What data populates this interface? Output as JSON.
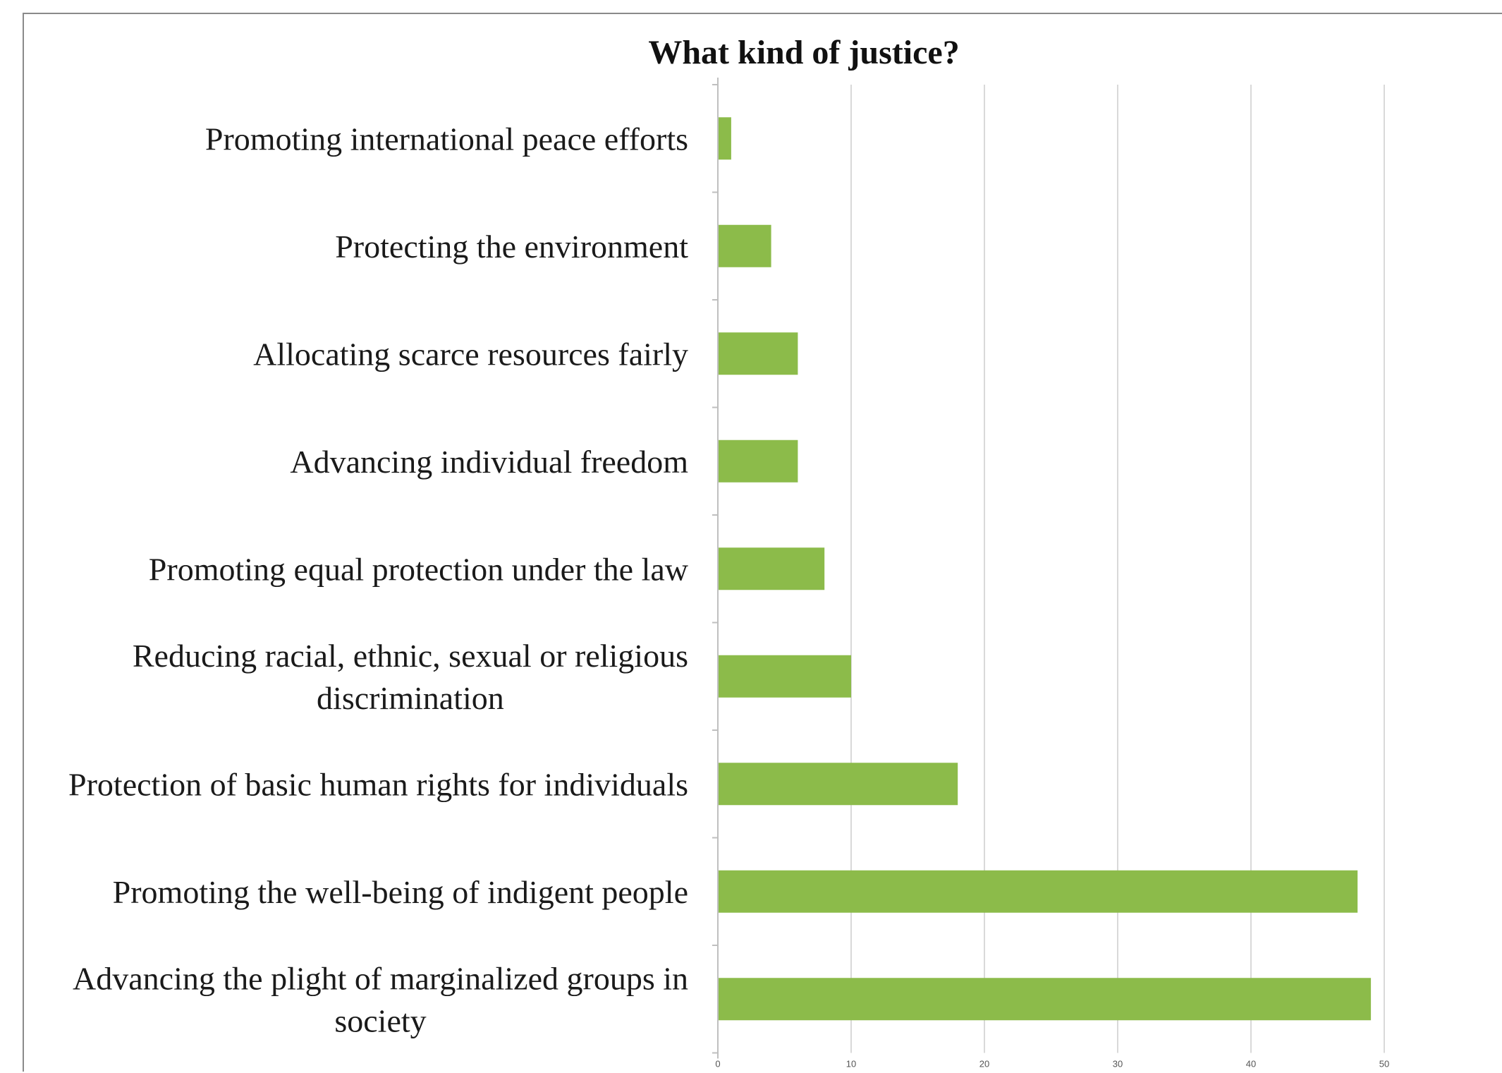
{
  "chart_data": {
    "type": "bar",
    "orientation": "horizontal",
    "title": "What kind of justice?",
    "xlabel": "",
    "ylabel": "",
    "categories": [
      "Promoting international peace efforts",
      "Protecting the environment",
      "Allocating scarce resources fairly",
      "Advancing individual freedom",
      "Promoting equal protection under the law",
      "Reducing racial, ethnic, sexual or religious discrimination",
      "Protection of basic human rights for individuals",
      "Promoting the well-being of indigent people",
      "Advancing the plight of marginalized groups in society"
    ],
    "label_lines": [
      [
        "Promoting international peace efforts"
      ],
      [
        "Protecting the environment"
      ],
      [
        "Allocating scarce resources fairly"
      ],
      [
        "Advancing individual freedom"
      ],
      [
        "Promoting equal protection under the law"
      ],
      [
        "Reducing racial, ethnic, sexual or religious",
        "discrimination"
      ],
      [
        "Protection of basic human rights for individuals"
      ],
      [
        "Promoting the well-being of indigent people"
      ],
      [
        "Advancing the plight of marginalized groups in",
        "society"
      ]
    ],
    "values": [
      1,
      4,
      6,
      6,
      8,
      10,
      18,
      48,
      49
    ],
    "xlim": [
      0,
      56
    ],
    "xticks": [
      0,
      10,
      20,
      30,
      40,
      50
    ],
    "xtick_labels": [
      "0",
      "10",
      "20",
      "30",
      "40",
      "50"
    ],
    "grid": true,
    "legend": "none",
    "bar_color": "#8cbb4a"
  }
}
